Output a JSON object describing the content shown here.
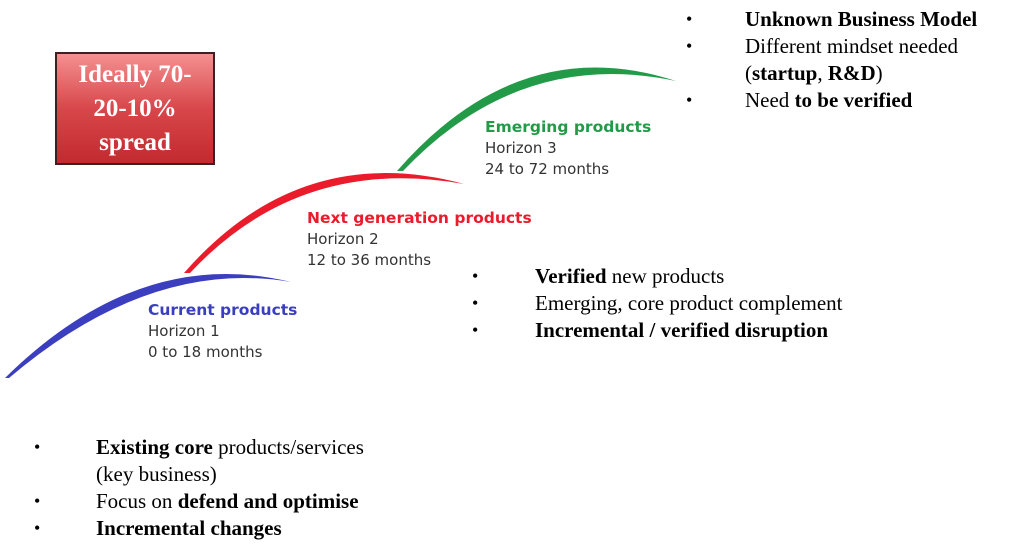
{
  "callout": {
    "line1": "Ideally 70-",
    "line2": "20-10%",
    "line3": "spread"
  },
  "colors": {
    "h1": "#3b3fbf",
    "h2": "#ea1c2c",
    "h3": "#239a48",
    "callout": "#c8353a"
  },
  "horizons": [
    {
      "title": "Current products",
      "name": "Horizon 1",
      "range": "0 to 18 months"
    },
    {
      "title": "Next generation products",
      "name": "Horizon 2",
      "range": "12 to 36 months"
    },
    {
      "title": "Emerging products",
      "name": "Horizon 3",
      "range": "24 to 72 months"
    }
  ],
  "h3_points": [
    {
      "bold": "Unknown Business Model",
      "rest": ""
    },
    {
      "bold": "",
      "rest": "Different mindset needed"
    },
    {
      "pre": "(",
      "bold": "startup",
      "mid": ", ",
      "bold2": "R&D",
      "post": ")"
    },
    {
      "pre": "Need ",
      "bold": "to be verified"
    }
  ],
  "h2_points": [
    {
      "bold": "Verified",
      "rest": " new products"
    },
    {
      "bold": "",
      "rest": "Emerging, core product complement"
    },
    {
      "bold": "Incremental / verified disruption",
      "rest": ""
    }
  ],
  "h1_points": [
    {
      "bold": "Existing core",
      "rest": " products/services"
    },
    {
      "rest": "(key business)"
    },
    {
      "pre": "Focus on ",
      "bold": "defend and optimise"
    },
    {
      "bold": "Incremental changes"
    }
  ],
  "bullet": "•"
}
